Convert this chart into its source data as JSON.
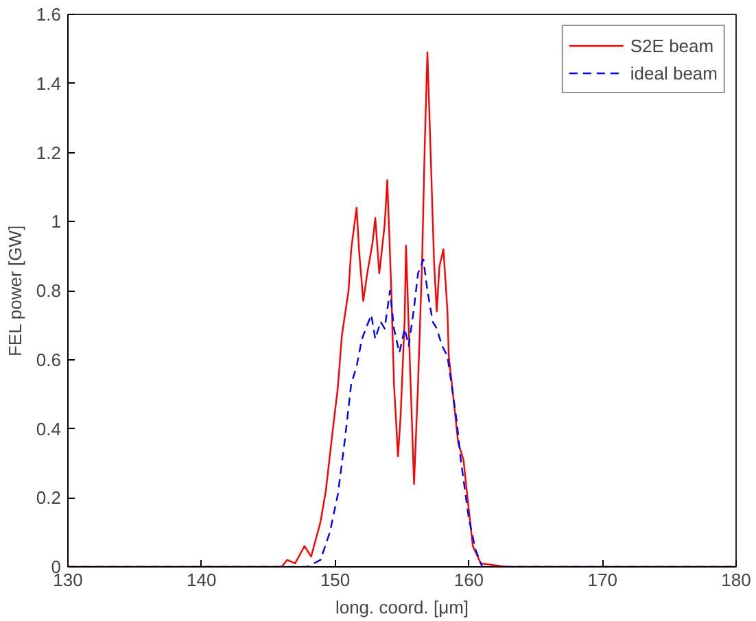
{
  "chart_data": {
    "type": "line",
    "xlabel": "long. coord. [μm]",
    "ylabel": "FEL power [GW]",
    "xlim": [
      130,
      180
    ],
    "ylim": [
      0,
      1.6
    ],
    "xticks": [
      130,
      140,
      150,
      160,
      170,
      180
    ],
    "yticks": [
      0,
      0.2,
      0.4,
      0.6,
      0.8,
      1,
      1.2,
      1.4,
      1.6
    ],
    "grid": false,
    "legend": "top right",
    "marker": "none",
    "series": [
      {
        "name": "S2E beam",
        "color": "#ff0000",
        "line_style": "solid",
        "x": [
          130,
          146.0,
          146.4,
          147.0,
          147.7,
          148.2,
          148.9,
          149.3,
          149.8,
          150.2,
          150.5,
          151.0,
          151.2,
          151.6,
          151.8,
          152.1,
          152.4,
          152.8,
          153.0,
          153.3,
          153.7,
          153.9,
          154.2,
          154.4,
          154.7,
          154.9,
          155.2,
          155.3,
          155.6,
          155.9,
          156.2,
          156.5,
          156.7,
          156.9,
          157.1,
          157.4,
          157.6,
          157.8,
          158.1,
          158.4,
          158.5,
          158.9,
          159.2,
          159.6,
          159.9,
          160.3,
          160.9,
          162.8,
          180
        ],
        "values": [
          0,
          0,
          0.02,
          0.01,
          0.06,
          0.03,
          0.13,
          0.22,
          0.39,
          0.52,
          0.67,
          0.8,
          0.92,
          1.04,
          0.91,
          0.77,
          0.85,
          0.94,
          1.01,
          0.85,
          0.99,
          1.12,
          0.8,
          0.53,
          0.32,
          0.44,
          0.72,
          0.93,
          0.58,
          0.24,
          0.53,
          0.88,
          1.22,
          1.49,
          1.25,
          0.88,
          0.74,
          0.87,
          0.92,
          0.74,
          0.61,
          0.47,
          0.36,
          0.31,
          0.2,
          0.06,
          0.01,
          0,
          0
        ]
      },
      {
        "name": "ideal beam",
        "color": "#0000ff",
        "line_style": "dashed",
        "x": [
          130,
          147.9,
          148.9,
          149.6,
          150.2,
          150.7,
          151.2,
          151.6,
          152.0,
          152.3,
          152.7,
          153.0,
          153.4,
          153.7,
          154.1,
          154.4,
          154.8,
          155.2,
          155.5,
          155.9,
          156.2,
          156.6,
          156.9,
          157.3,
          157.6,
          158.0,
          158.4,
          158.7,
          159.1,
          159.4,
          160.0,
          160.5,
          161.0,
          180
        ],
        "values": [
          0,
          0,
          0.02,
          0.1,
          0.21,
          0.36,
          0.53,
          0.58,
          0.66,
          0.69,
          0.73,
          0.66,
          0.71,
          0.69,
          0.8,
          0.69,
          0.62,
          0.69,
          0.64,
          0.75,
          0.85,
          0.89,
          0.8,
          0.71,
          0.69,
          0.64,
          0.61,
          0.53,
          0.42,
          0.31,
          0.14,
          0.05,
          0,
          0
        ]
      }
    ]
  }
}
